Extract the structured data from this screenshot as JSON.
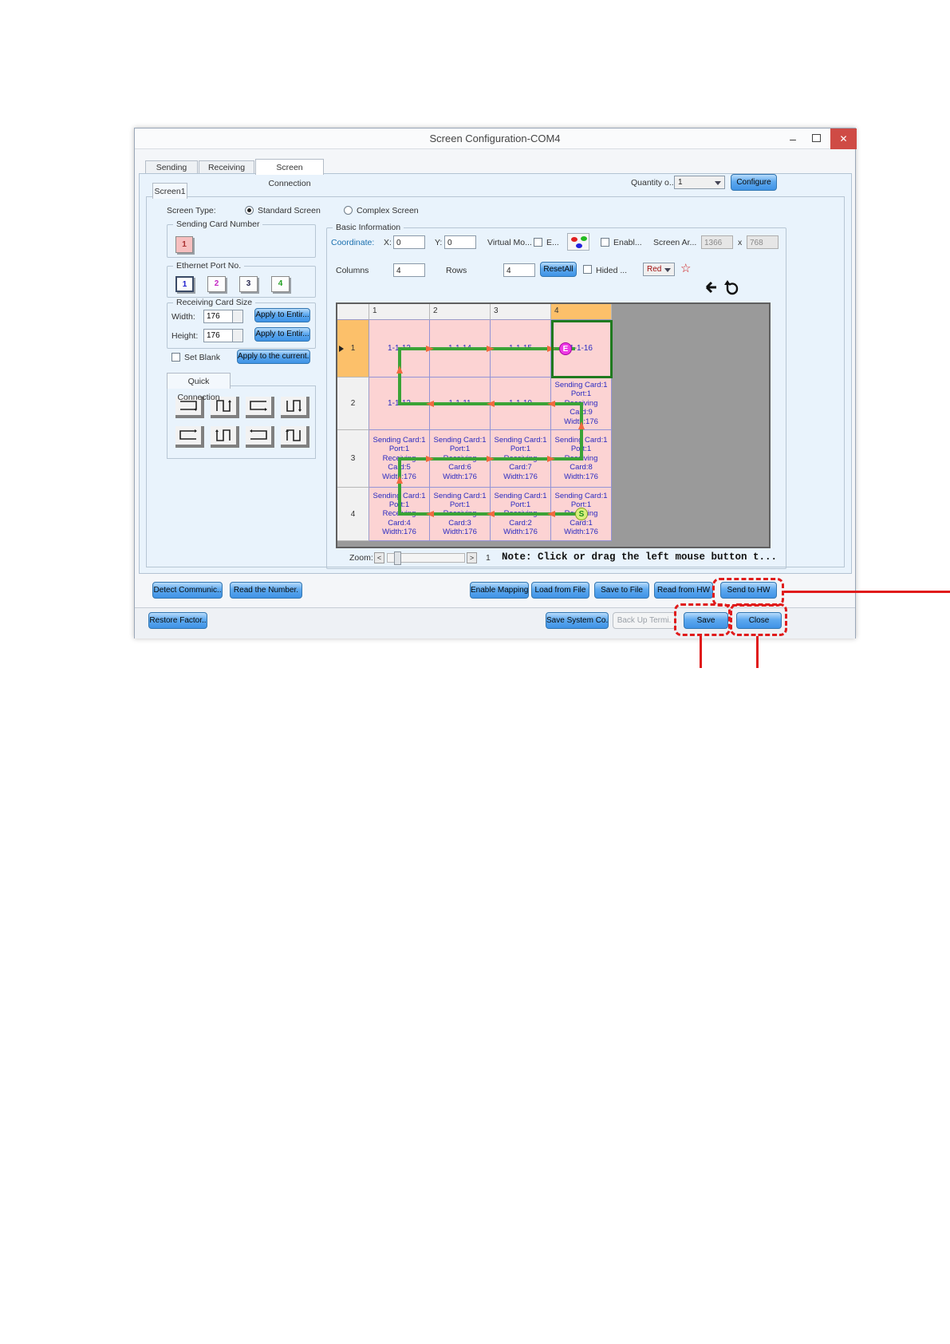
{
  "window": {
    "title": "Screen Configuration-COM4",
    "minimize_glyph": "–",
    "close_glyph": "✕"
  },
  "tabs": [
    {
      "label": "Sending Card"
    },
    {
      "label": "Receiving Card"
    },
    {
      "label": "Screen Connection"
    }
  ],
  "config_bar": {
    "quantity_label": "Quantity o...",
    "quantity_value": "1",
    "configure_label": "Configure"
  },
  "screen_tab": {
    "label": "Screen1"
  },
  "screen_type": {
    "label": "Screen Type:",
    "standard_label": "Standard Screen",
    "complex_label": "Complex Screen"
  },
  "sending_card_number": {
    "title": "Sending Card Number",
    "value": "1"
  },
  "ethernet_port": {
    "title": "Ethernet Port No.",
    "ports": [
      {
        "label": "1",
        "color": "#1a1acd"
      },
      {
        "label": "2",
        "color": "#c424c4"
      },
      {
        "label": "3",
        "color": "#26264f"
      },
      {
        "label": "4",
        "color": "#1f9f1f"
      }
    ]
  },
  "receiving_card_size": {
    "title": "Receiving Card Size",
    "width_label": "Width:",
    "width_value": "176",
    "height_label": "Height:",
    "height_value": "176",
    "apply_width_label": "Apply to Entir...",
    "apply_height_label": "Apply to Entir...",
    "set_blank_label": "Set Blank",
    "apply_current_label": "Apply to the current.."
  },
  "quick_connection": {
    "title": "Quick Connection"
  },
  "basic_information": {
    "title": "Basic Information",
    "coordinate_label": "Coordinate:",
    "x_label": "X:",
    "x_value": "0",
    "y_label": "Y:",
    "y_value": "0",
    "virtual_mode_label": "Virtual Mo...",
    "virtual_checkbox_label": "E...",
    "enable_label": "Enabl...",
    "screen_area_label": "Screen Ar...",
    "screen_width": "1366",
    "multiply_label": "x",
    "screen_height": "768",
    "columns_label": "Columns",
    "columns_value": "4",
    "rows_label": "Rows",
    "rows_value": "4",
    "reset_all_label": "ResetAll",
    "hided_label": "Hided ...",
    "line_color_value": "Red",
    "star_glyph": "☆"
  },
  "grid": {
    "col_headers": [
      "1",
      "2",
      "3",
      "4"
    ],
    "row_headers": [
      "1",
      "2",
      "3",
      "4"
    ],
    "cells": [
      [
        "1-1-13",
        "1-1-14",
        "1-1-15",
        "1-1-16"
      ],
      [
        "1-1-12",
        "1-1-11",
        "1-1-10",
        "Sending Card:1\nPort:1\nReceiving\nCard:9\nWidth:176"
      ],
      [
        "Sending Card:1\nPort:1\nReceiving\nCard:5\nWidth:176",
        "Sending Card:1\nPort:1\nReceiving\nCard:6\nWidth:176",
        "Sending Card:1\nPort:1\nReceiving\nCard:7\nWidth:176",
        "Sending Card:1\nPort:1\nReceiving\nCard:8\nWidth:176"
      ],
      [
        "Sending Card:1\nPort:1\nReceiving\nCard:4\nWidth:176",
        "Sending Card:1\nPort:1\nReceiving\nCard:3\nWidth:176",
        "Sending Card:1\nPort:1\nReceiving\nCard:2\nWidth:176",
        "Sending Card:1\nPort:1\nReceiving\nCard:1\nWidth:176"
      ]
    ],
    "start_marker": "S",
    "end_marker": "E"
  },
  "zoom_bar": {
    "label": "Zoom:",
    "decrease_glyph": "<",
    "increase_glyph": ">",
    "value": "1",
    "note": "Note: Click or drag the left mouse button t..."
  },
  "action_buttons": {
    "detect": "Detect Communic..",
    "read_number": "Read the Number.",
    "enable_mapping": "Enable Mapping",
    "load_from_file": "Load from File",
    "save_to_file": "Save to File",
    "read_from_hw": "Read from HW",
    "send_to_hw": "Send to HW"
  },
  "footer_buttons": {
    "restore_factory": "Restore Factor..",
    "save_system": "Save System Co..",
    "backup_terminal": "Back Up Termi.",
    "save": "Save",
    "close": "Close"
  },
  "colors": {
    "accent_blue": "#4f9ef0",
    "grid_pink": "#fcd3d3",
    "path_green": "#3aa336",
    "arrow_orange": "#f06a40",
    "header_orange": "#fcc06a",
    "highlight_red": "#e01b1b",
    "close_red": "#cf4b45"
  }
}
